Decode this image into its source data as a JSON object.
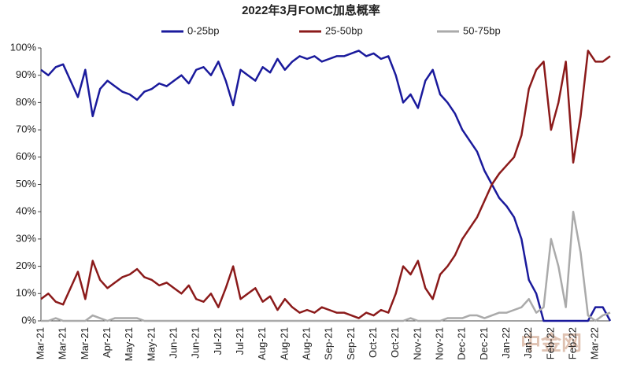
{
  "chart_data": {
    "type": "line",
    "title": "2022年3月FOMC加息概率",
    "categories": [
      "Mar-21",
      null,
      null,
      "Mar-21",
      null,
      null,
      "Mar-21",
      null,
      null,
      "Apr-21",
      null,
      null,
      "May-21",
      null,
      null,
      "May-21",
      null,
      null,
      "Jun-21",
      null,
      null,
      "Jun-21",
      null,
      null,
      "Jul-21",
      null,
      null,
      "Jul-21",
      null,
      null,
      "Aug-21",
      null,
      null,
      "Aug-21",
      null,
      null,
      "Aug-21",
      null,
      null,
      "Sep-21",
      null,
      null,
      "Sep-21",
      null,
      null,
      "Oct-21",
      null,
      null,
      "Oct-21",
      null,
      null,
      "Nov-21",
      null,
      null,
      "Nov-21",
      null,
      null,
      "Dec-21",
      null,
      null,
      "Dec-21",
      null,
      null,
      "Jan-22",
      null,
      null,
      "Jan-22",
      null,
      null,
      "Feb-22",
      null,
      null,
      "Feb-22",
      null,
      null,
      "Mar-22",
      null,
      null
    ],
    "series": [
      {
        "name": "0-25bp",
        "color": "#1a1a9c",
        "values": [
          92,
          90,
          93,
          94,
          88,
          82,
          92,
          75,
          85,
          88,
          86,
          84,
          83,
          81,
          84,
          85,
          87,
          86,
          88,
          90,
          87,
          92,
          93,
          90,
          95,
          88,
          79,
          92,
          90,
          88,
          93,
          91,
          96,
          92,
          95,
          97,
          96,
          97,
          95,
          96,
          97,
          97,
          98,
          99,
          97,
          98,
          96,
          97,
          90,
          80,
          83,
          78,
          88,
          92,
          83,
          80,
          76,
          70,
          66,
          62,
          55,
          50,
          45,
          42,
          38,
          30,
          15,
          10,
          0,
          0,
          0,
          0,
          0,
          0,
          0,
          5,
          5,
          0
        ]
      },
      {
        "name": "25-50bp",
        "color": "#8b1a1a",
        "values": [
          8,
          10,
          7,
          6,
          12,
          18,
          8,
          22,
          15,
          12,
          14,
          16,
          17,
          19,
          16,
          15,
          13,
          14,
          12,
          10,
          13,
          8,
          7,
          10,
          5,
          12,
          20,
          8,
          10,
          12,
          7,
          9,
          4,
          8,
          5,
          3,
          4,
          3,
          5,
          4,
          3,
          3,
          2,
          1,
          3,
          2,
          4,
          3,
          10,
          20,
          17,
          22,
          12,
          8,
          17,
          20,
          24,
          30,
          34,
          38,
          44,
          50,
          54,
          57,
          60,
          68,
          85,
          92,
          95,
          70,
          80,
          95,
          58,
          75,
          99,
          95,
          95,
          97
        ]
      },
      {
        "name": "50-75bp",
        "color": "#aaaaaa",
        "values": [
          0,
          0,
          1,
          0,
          0,
          0,
          0,
          2,
          1,
          0,
          1,
          1,
          1,
          1,
          0,
          0,
          0,
          0,
          0,
          0,
          0,
          0,
          0,
          0,
          0,
          0,
          0,
          0,
          0,
          0,
          0,
          0,
          0,
          0,
          0,
          0,
          0,
          0,
          0,
          0,
          0,
          0,
          0,
          0,
          0,
          0,
          0,
          0,
          0,
          0,
          1,
          0,
          0,
          0,
          0,
          1,
          1,
          1,
          2,
          2,
          1,
          2,
          3,
          3,
          4,
          5,
          8,
          3,
          5,
          30,
          20,
          5,
          40,
          25,
          2,
          0,
          2,
          3
        ]
      }
    ],
    "ylim": [
      0,
      100
    ],
    "yticks": [
      {
        "value": 0,
        "label": "0%"
      },
      {
        "value": 10,
        "label": "10%"
      },
      {
        "value": 20,
        "label": "20%"
      },
      {
        "value": 30,
        "label": "30%"
      },
      {
        "value": 40,
        "label": "40%"
      },
      {
        "value": 50,
        "label": "50%"
      },
      {
        "value": 60,
        "label": "60%"
      },
      {
        "value": 70,
        "label": "70%"
      },
      {
        "value": 80,
        "label": "80%"
      },
      {
        "value": 90,
        "label": "90%"
      },
      {
        "value": 100,
        "label": "100%"
      }
    ],
    "legend": "top",
    "watermark": "中金网"
  }
}
